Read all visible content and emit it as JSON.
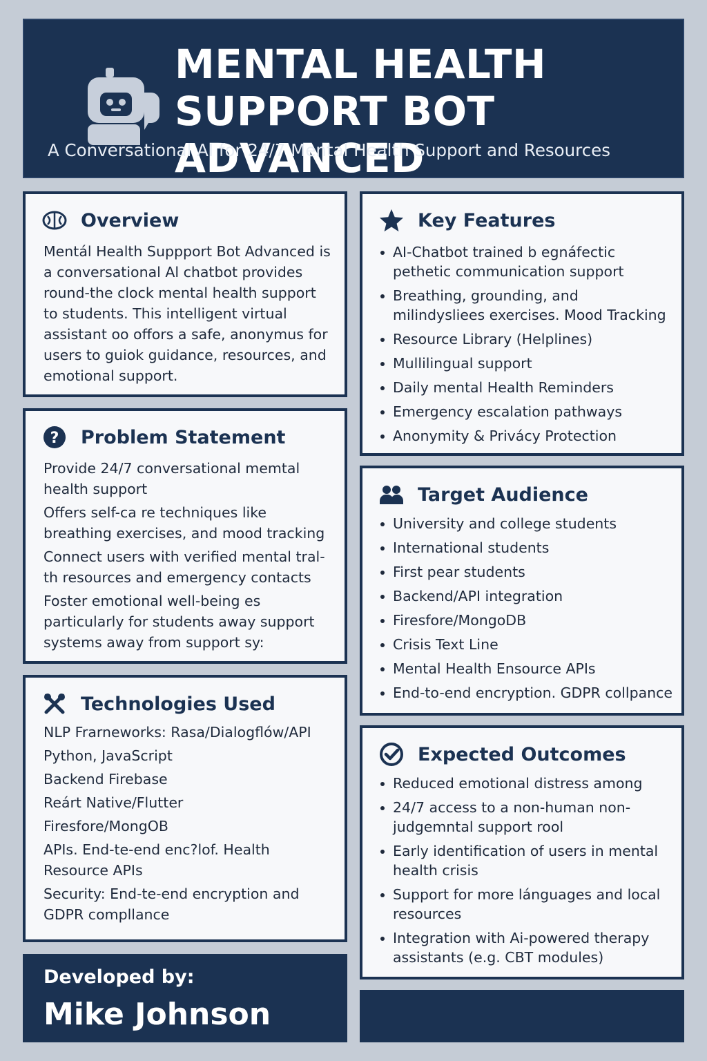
{
  "header": {
    "title_line1": "MENTAL HEALTH",
    "title_line2": "SUPPORT BOT ADVANCED",
    "subtitle": "A Conversational AI for 24/7 Mental Health Support and Resources",
    "logo_icon": "robot-chat-icon"
  },
  "colors": {
    "navy": "#1b3252",
    "card_bg": "#f7f8fa",
    "page_bg": "#c5ccd6"
  },
  "overview": {
    "heading": "Overview",
    "icon": "brain-icon",
    "text": "Mentál Health Suppport Bot Advanced is a conversational Al chatbot provides round-the clock mental health support to students. This intelligent virtual assistant oo offors a safe, anonymus for users to guiok guidance, resources, and emotional support."
  },
  "problem": {
    "heading": "Problem Statement",
    "icon": "question-circle-icon",
    "items": [
      "Provide 24/7 conversational memtal health support",
      "Offers self-ca re techniques like breathing exercises, and mood tracking",
      "Connect users with verified mental tral-th resources and emergency contacts",
      "Foster emotional well-being es particularly for students away support systems away from support sy:"
    ]
  },
  "technologies": {
    "heading": "Technologies Used",
    "icon": "tools-icon",
    "items": [
      "NLP Frarneworks: Rasa/Dialogflów/API",
      "Python, JavaScript",
      "Backend  Firebase",
      "Reárt Native/Flutter",
      "Firesfore/MongOB",
      "APIs. End-te-end enc?lof. Health Resource APIs",
      "Security: End-te-end encryption and GDPR compllance"
    ]
  },
  "developer": {
    "label": "Developed by:",
    "name": "Mike Johnson"
  },
  "features": {
    "heading": "Key Features",
    "icon": "star-icon",
    "items": [
      "AI-Chatbot trained b egnáfectic pethetic communication support",
      "Breathing, grounding, and milindysliees exercises. Mood Tracking",
      "Resource Library (Helplines)",
      "Mullilingual support",
      "Daily mental Health Reminders",
      "Emergency escalation pathways",
      "Anonymity & Privácy Protection"
    ]
  },
  "audience": {
    "heading": "Target Audience",
    "icon": "users-icon",
    "items": [
      "University and college students",
      "International students",
      "First pear students",
      "Backend/API integration",
      "Firesfore/MongoDB",
      "Crisis Text Line",
      "Mental Health Ensource APIs",
      "End-to-end encryption. GDPR collpance"
    ]
  },
  "outcomes": {
    "heading": "Expected Outcomes",
    "icon": "check-circle-icon",
    "items": [
      "Reduced emotional distress among",
      "24/7 access to a non-human non-judgemntal support rool",
      "Early identification of users in mental health crisis",
      "Support for more lánguages and local resources",
      "Integration with Ai-powered therapy assistants (e.g. CBT modules)"
    ]
  }
}
